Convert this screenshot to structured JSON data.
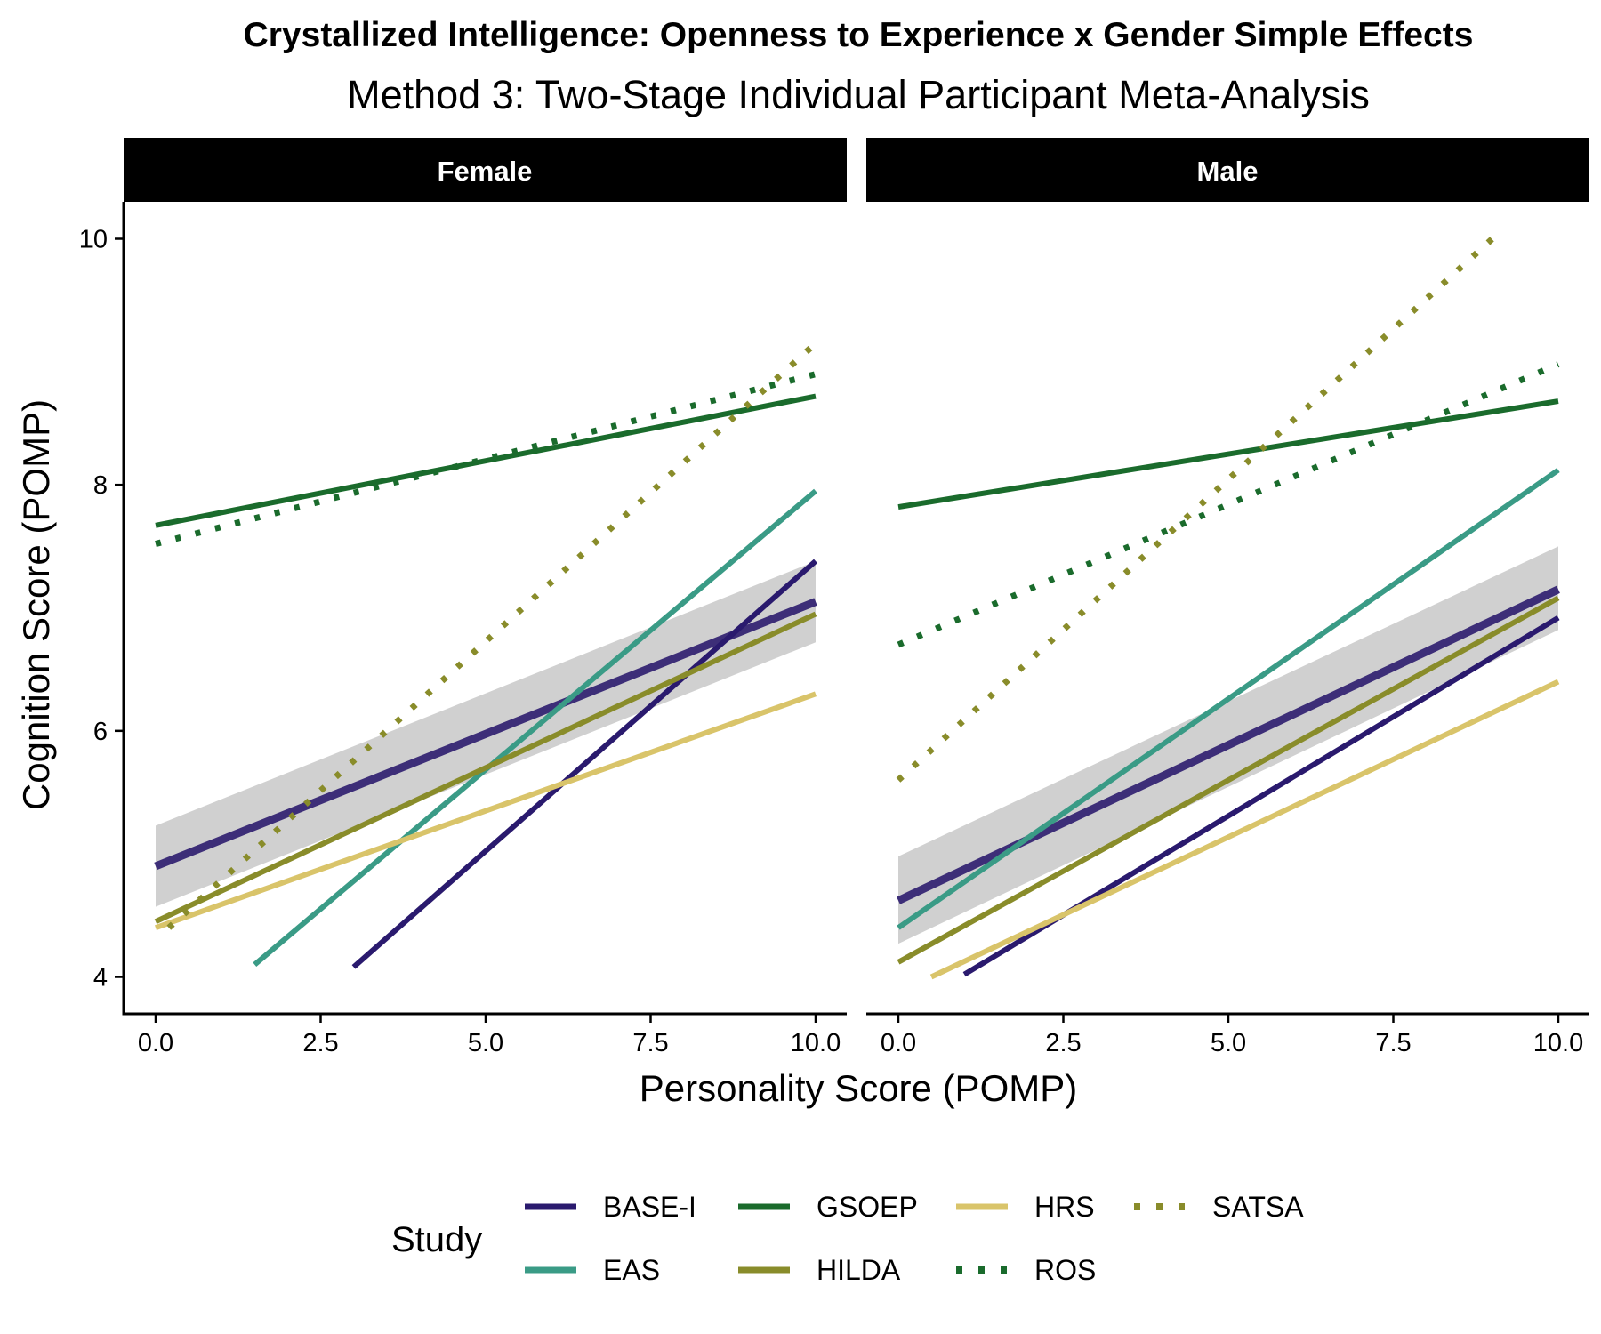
{
  "chart_data": {
    "type": "line",
    "title": "Crystallized Intelligence: Openness to Experience x Gender Simple Effects",
    "subtitle": "Method 3: Two-Stage Individual Participant Meta-Analysis",
    "xlabel": "Personality Score (POMP)",
    "ylabel": "Cognition Score (POMP)",
    "xlim": [
      0,
      10
    ],
    "ylim": [
      3.7,
      10.3
    ],
    "x_ticks": [
      "0.0",
      "2.5",
      "5.0",
      "7.5",
      "10.0"
    ],
    "x_tick_values": [
      0,
      2.5,
      5,
      7.5,
      10
    ],
    "y_ticks": [
      "4",
      "6",
      "8",
      "10"
    ],
    "y_tick_values": [
      4,
      6,
      8,
      10
    ],
    "grid": false,
    "legend_title": "Study",
    "legend_position": "bottom",
    "legend": [
      {
        "name": "BASE-I",
        "color": "#2a1a6e",
        "dash": "solid"
      },
      {
        "name": "EAS",
        "color": "#3a9b86",
        "dash": "solid"
      },
      {
        "name": "GSOEP",
        "color": "#1a6b2c",
        "dash": "solid"
      },
      {
        "name": "HILDA",
        "color": "#898c2a",
        "dash": "solid"
      },
      {
        "name": "HRS",
        "color": "#d9c46a",
        "dash": "solid"
      },
      {
        "name": "ROS",
        "color": "#1a6b2c",
        "dash": "dotted"
      },
      {
        "name": "SATSA",
        "color": "#898c2a",
        "dash": "dotted"
      }
    ],
    "overall_color": "#3d2e78",
    "ribbon_color": "#c8c8c8",
    "facets": [
      {
        "label": "Female",
        "overall": {
          "x": [
            0,
            10
          ],
          "y": [
            4.9,
            7.05
          ],
          "lower": [
            4.57,
            6.72
          ],
          "upper": [
            5.23,
            7.38
          ]
        },
        "series": [
          {
            "name": "BASE-I",
            "x": [
              3.0,
              10.0
            ],
            "y": [
              4.08,
              7.38
            ]
          },
          {
            "name": "EAS",
            "x": [
              1.5,
              10.0
            ],
            "y": [
              4.1,
              7.95
            ]
          },
          {
            "name": "GSOEP",
            "x": [
              0,
              10
            ],
            "y": [
              7.67,
              8.72
            ]
          },
          {
            "name": "HILDA",
            "x": [
              0,
              10
            ],
            "y": [
              4.45,
              6.95
            ]
          },
          {
            "name": "HRS",
            "x": [
              0,
              10
            ],
            "y": [
              4.4,
              6.3
            ]
          },
          {
            "name": "ROS",
            "x": [
              0,
              10
            ],
            "y": [
              7.52,
              8.9
            ]
          },
          {
            "name": "SATSA",
            "x": [
              0.2,
              10.0
            ],
            "y": [
              4.4,
              9.15
            ]
          }
        ]
      },
      {
        "label": "Male",
        "overall": {
          "x": [
            0,
            10
          ],
          "y": [
            4.62,
            7.15
          ],
          "lower": [
            4.27,
            6.82
          ],
          "upper": [
            4.98,
            7.5
          ]
        },
        "series": [
          {
            "name": "BASE-I",
            "x": [
              1.0,
              10.0
            ],
            "y": [
              4.02,
              6.92
            ]
          },
          {
            "name": "EAS",
            "x": [
              0,
              10
            ],
            "y": [
              4.4,
              8.12
            ]
          },
          {
            "name": "GSOEP",
            "x": [
              0,
              10
            ],
            "y": [
              7.82,
              8.68
            ]
          },
          {
            "name": "HILDA",
            "x": [
              0,
              10
            ],
            "y": [
              4.12,
              7.08
            ]
          },
          {
            "name": "HRS",
            "x": [
              0.5,
              10.0
            ],
            "y": [
              4.0,
              6.4
            ]
          },
          {
            "name": "ROS",
            "x": [
              0,
              10
            ],
            "y": [
              6.7,
              8.98
            ]
          },
          {
            "name": "SATSA",
            "x": [
              0,
              9.0
            ],
            "y": [
              5.6,
              10.0
            ]
          }
        ]
      }
    ]
  }
}
